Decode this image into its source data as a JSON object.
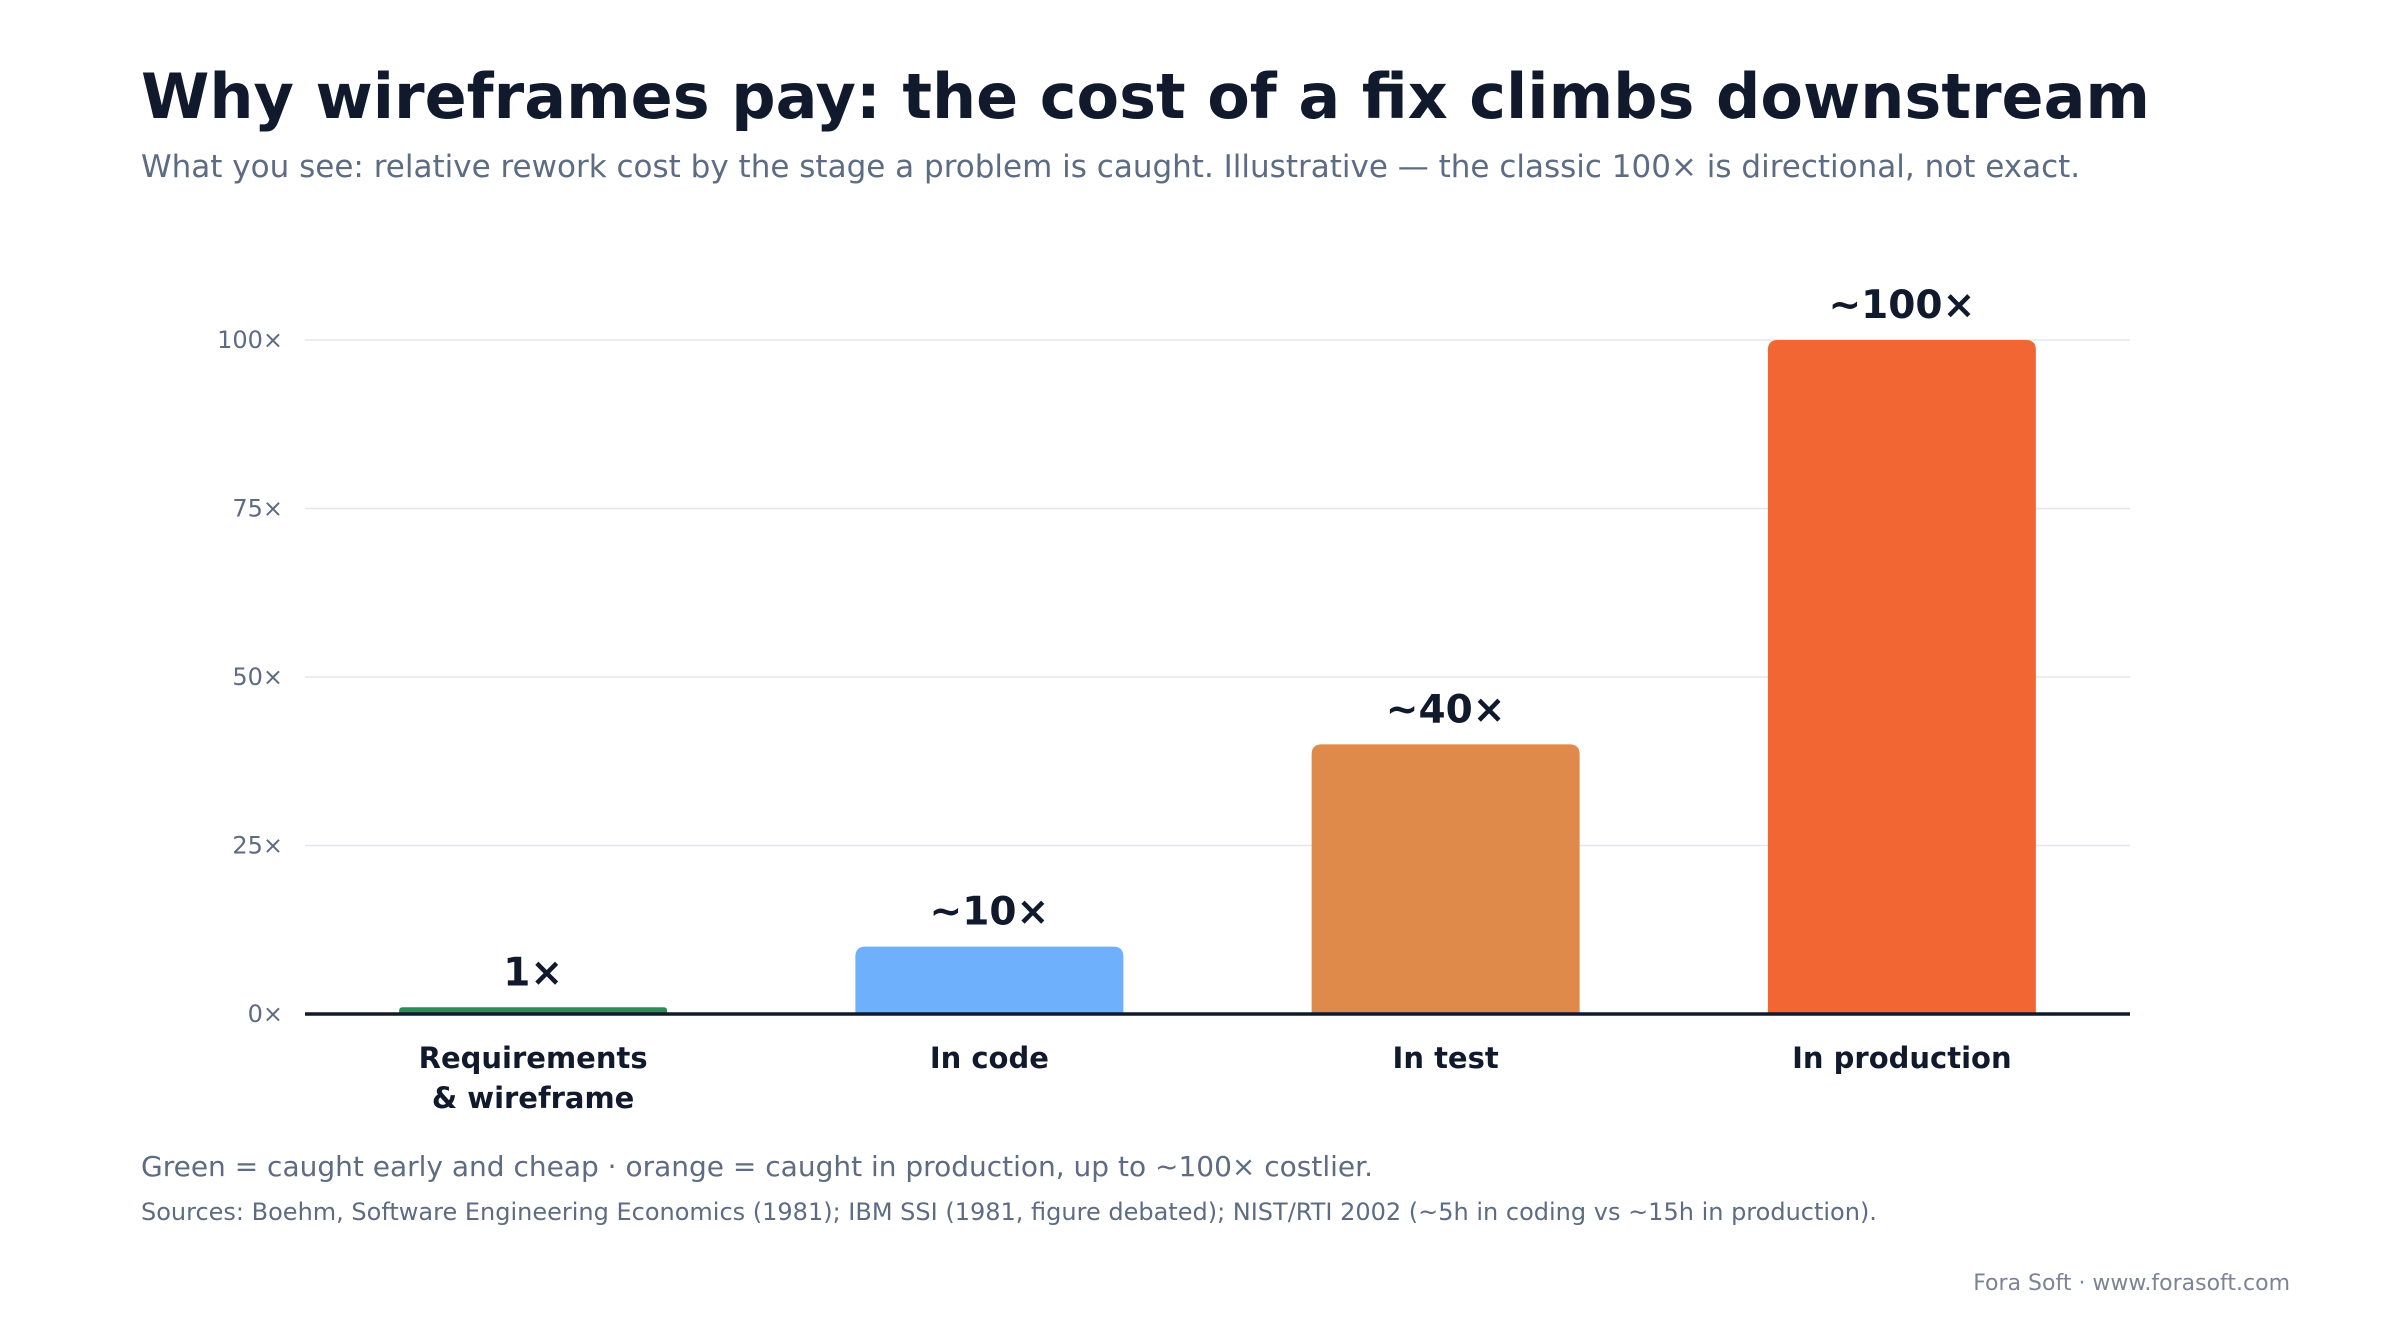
{
  "header": {
    "title": "Why wireframes pay: the cost of a fix climbs downstream",
    "subtitle": "What you see: relative rework cost by the stage a problem is caught. Illustrative — the classic 100× is directional, not exact."
  },
  "chart_data": {
    "type": "bar",
    "categories": [
      [
        "Requirements",
        "& wireframe"
      ],
      [
        "In code"
      ],
      [
        "In test"
      ],
      [
        "In production"
      ]
    ],
    "values": [
      1,
      10,
      40,
      100
    ],
    "data_labels": [
      "1×",
      "~10×",
      "~40×",
      "~100×"
    ],
    "colors": [
      "#2e8b57",
      "#6eb0fb",
      "#df8a4a",
      "#f26633"
    ],
    "ylim": [
      0,
      100
    ],
    "y_ticks": [
      0,
      25,
      50,
      75,
      100
    ],
    "y_tick_labels": [
      "0×",
      "25×",
      "50×",
      "75×",
      "100×"
    ],
    "grid": true,
    "xlabel": "",
    "ylabel": ""
  },
  "notes": {
    "legend_note": "Green = caught early and cheap · orange = caught in production, up to ~100× costlier.",
    "sources": "Sources: Boehm, Software Engineering Economics (1981); IBM SSI (1981, figure debated); NIST/RTI 2002 (~5h in coding vs ~15h in production)."
  },
  "footer": {
    "brand": "Fora Soft · www.forasoft.com"
  }
}
